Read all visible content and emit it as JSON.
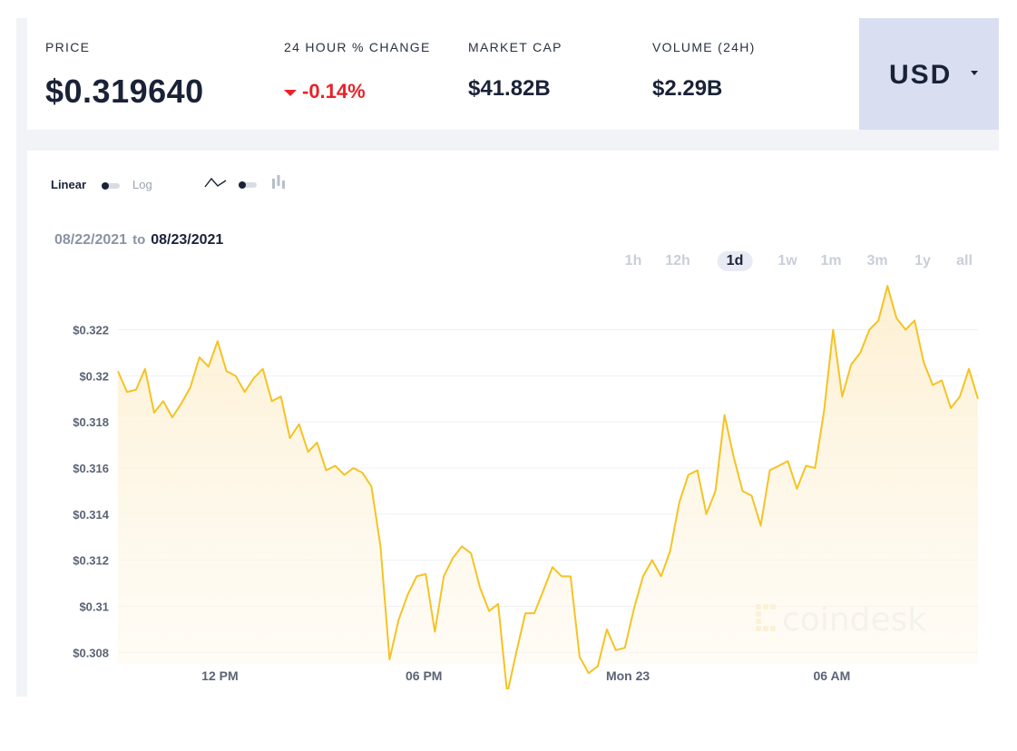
{
  "stats": {
    "price": {
      "label": "PRICE",
      "value": "$0.319640"
    },
    "change": {
      "label": "24 HOUR % CHANGE",
      "value": "-0.14%"
    },
    "market_cap": {
      "label": "MARKET CAP",
      "value": "$41.82B"
    },
    "volume": {
      "label": "VOLUME (24H)",
      "value": "$2.29B"
    }
  },
  "currency": {
    "label": "USD"
  },
  "scale_toggle": {
    "on_label": "Linear",
    "off_label": "Log",
    "selected": "Linear"
  },
  "chart_style_toggle": {
    "selected": "line",
    "line_icon": "line-chart-icon",
    "bar_icon": "candlestick-icon"
  },
  "date_range": {
    "from": "08/22/2021",
    "to_word": "to",
    "to": "08/23/2021"
  },
  "ranges": [
    {
      "label": "1h"
    },
    {
      "label": "12h"
    },
    {
      "label": "1d"
    },
    {
      "label": "1w"
    },
    {
      "label": "1m"
    },
    {
      "label": "3m"
    },
    {
      "label": "1y"
    },
    {
      "label": "all"
    }
  ],
  "active_range": "1d",
  "watermark": "coindesk",
  "colors": {
    "line": "#f5c324",
    "fill": "#fdf3dc",
    "negative": "#e8232a",
    "accent_bg": "#d9dff1"
  },
  "chart_data": {
    "type": "area",
    "y_ticks": [
      "$0.322",
      "$0.32",
      "$0.318",
      "$0.316",
      "$0.314",
      "$0.312",
      "$0.31",
      "$0.308"
    ],
    "y_tick_values": [
      0.322,
      0.32,
      0.318,
      0.316,
      0.314,
      0.312,
      0.31,
      0.308
    ],
    "ylim": [
      0.3075,
      0.3245
    ],
    "x_ticks": [
      {
        "label": "12 PM",
        "hour": 3
      },
      {
        "label": "06 PM",
        "hour": 9
      },
      {
        "label": "Mon 23",
        "hour": 15
      },
      {
        "label": "06 AM",
        "hour": 21
      }
    ],
    "xlim": [
      0,
      25.3
    ],
    "grid": true,
    "values": [
      0.3202,
      0.3193,
      0.3194,
      0.3203,
      0.3184,
      0.3189,
      0.3182,
      0.3188,
      0.3195,
      0.3208,
      0.3204,
      0.3215,
      0.3202,
      0.32,
      0.3193,
      0.3199,
      0.3203,
      0.3189,
      0.3191,
      0.3173,
      0.3179,
      0.3167,
      0.3171,
      0.3159,
      0.3161,
      0.3157,
      0.316,
      0.3158,
      0.3152,
      0.3126,
      0.3077,
      0.3094,
      0.3105,
      0.3113,
      0.3114,
      0.3089,
      0.3113,
      0.3121,
      0.3126,
      0.3123,
      0.3108,
      0.3098,
      0.3101,
      0.3062,
      0.308,
      0.3097,
      0.3097,
      0.3107,
      0.3117,
      0.3113,
      0.3113,
      0.3078,
      0.3071,
      0.3074,
      0.309,
      0.3081,
      0.3082,
      0.3099,
      0.3113,
      0.312,
      0.3113,
      0.3124,
      0.3145,
      0.3157,
      0.3159,
      0.314,
      0.315,
      0.3183,
      0.3165,
      0.315,
      0.3148,
      0.3135,
      0.3159,
      0.3161,
      0.3163,
      0.3151,
      0.3161,
      0.316,
      0.3185,
      0.322,
      0.3191,
      0.3205,
      0.321,
      0.322,
      0.3224,
      0.3239,
      0.3225,
      0.322,
      0.3224,
      0.3206,
      0.3196,
      0.3198,
      0.3186,
      0.3191,
      0.3203,
      0.319
    ]
  }
}
